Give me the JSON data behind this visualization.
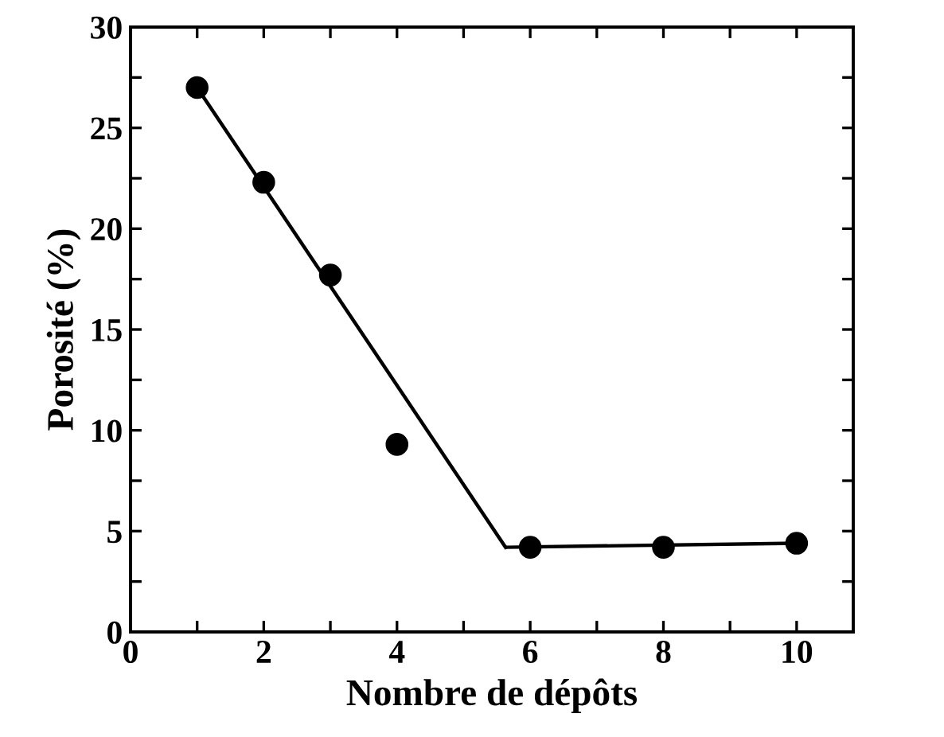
{
  "chart_data": {
    "type": "scatter",
    "xlabel": "Nombre de dépôts",
    "ylabel": "Porosité (%)",
    "xlim": [
      0,
      10.85
    ],
    "ylim": [
      0,
      30
    ],
    "xticks": [
      0,
      {
        "value": 1,
        "label": null
      },
      2,
      {
        "value": 3,
        "label": null
      },
      4,
      {
        "value": 5,
        "label": null
      },
      6,
      {
        "value": 7,
        "label": null
      },
      8,
      {
        "value": 9,
        "label": null
      },
      10
    ],
    "yticks": [
      0,
      {
        "value": 2.5,
        "label": null
      },
      5,
      {
        "value": 7.5,
        "label": null
      },
      10,
      {
        "value": 12.5,
        "label": null
      },
      15,
      {
        "value": 17.5,
        "label": null
      },
      20,
      {
        "value": 22.5,
        "label": null
      },
      25,
      {
        "value": 27.5,
        "label": null
      },
      30
    ],
    "grid": false,
    "legend": false,
    "marker": "circle",
    "series": [
      {
        "color": "#000000",
        "x": [
          1,
          2,
          3,
          4,
          6,
          8,
          10
        ],
        "values": [
          27.0,
          22.3,
          17.7,
          9.3,
          4.2,
          4.2,
          4.4
        ]
      },
      {
        "type": "line",
        "color": "#000000",
        "marker": "none",
        "x": [
          1,
          5.63
        ],
        "values": [
          27.0,
          4.2
        ]
      },
      {
        "type": "line",
        "color": "#000000",
        "marker": "none",
        "x": [
          5.65,
          10
        ],
        "values": [
          4.2,
          4.4
        ]
      }
    ]
  }
}
